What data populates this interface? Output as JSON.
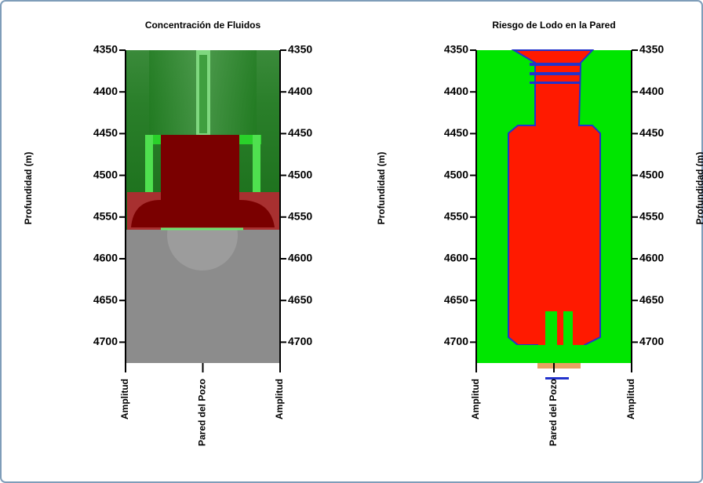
{
  "chart_data": [
    {
      "type": "heatmap",
      "title": "Concentración de Fluidos",
      "ylabel": "Profundidad  (m)",
      "ylim": [
        4350,
        4725
      ],
      "yticks": [
        4350,
        4400,
        4450,
        4500,
        4550,
        4600,
        4650,
        4700
      ],
      "xlabels": [
        "Amplitud",
        "Pared del Pozo",
        "Amplitud"
      ]
    },
    {
      "type": "heatmap",
      "title": "Riesgo de Lodo en la Pared",
      "ylabel": "Profundidad  (m)",
      "ylim": [
        4350,
        4725
      ],
      "yticks": [
        4350,
        4400,
        4450,
        4500,
        4550,
        4600,
        4650,
        4700
      ],
      "xlabels": [
        "Amplitud",
        "Pared del Pozo",
        "Amplitud"
      ]
    }
  ],
  "edge_label": "Profundidad  (m)"
}
